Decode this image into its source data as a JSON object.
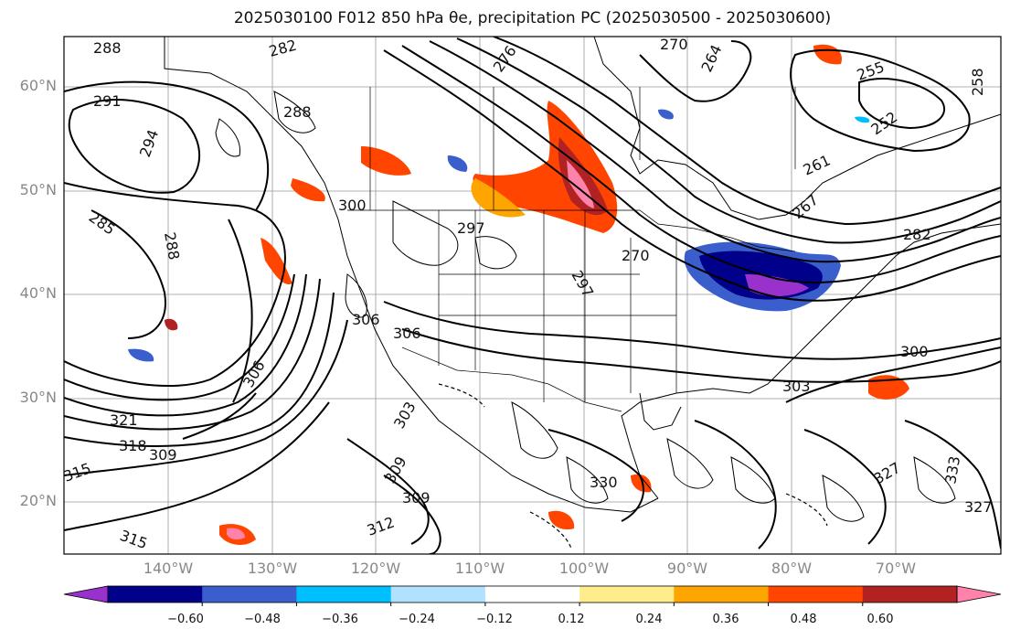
{
  "title_text": "2025030100 F012 850 hPa θe, precipitation PC (2025030500 - 2025030600)",
  "map": {
    "lat_labels": [
      "60°N",
      "50°N",
      "40°N",
      "30°N",
      "20°N"
    ],
    "lon_labels": [
      "140°W",
      "130°W",
      "120°W",
      "110°W",
      "100°W",
      "90°W",
      "80°W",
      "70°W"
    ],
    "contour_labels": [
      "288",
      "282",
      "276",
      "270",
      "264",
      "255",
      "258",
      "252",
      "291",
      "288",
      "294",
      "261",
      "267",
      "282",
      "285",
      "288",
      "300",
      "297",
      "270",
      "297",
      "306",
      "306",
      "306",
      "300",
      "303",
      "303",
      "309",
      "312",
      "309",
      "321",
      "318",
      "309",
      "315",
      "315",
      "330",
      "327",
      "333",
      "327"
    ]
  },
  "colorbar": {
    "tick_labels": [
      "−0.60",
      "−0.48",
      "−0.36",
      "−0.24",
      "−0.12",
      "0.12",
      "0.24",
      "0.36",
      "0.48",
      "0.60"
    ],
    "colors": [
      "#9932cc",
      "#00008b",
      "#3a5fcd",
      "#00bfff",
      "#b0e2ff",
      "#ffffff",
      "#ffec8b",
      "#ffa500",
      "#ff4500",
      "#b22222",
      "#ff82ab"
    ]
  }
}
